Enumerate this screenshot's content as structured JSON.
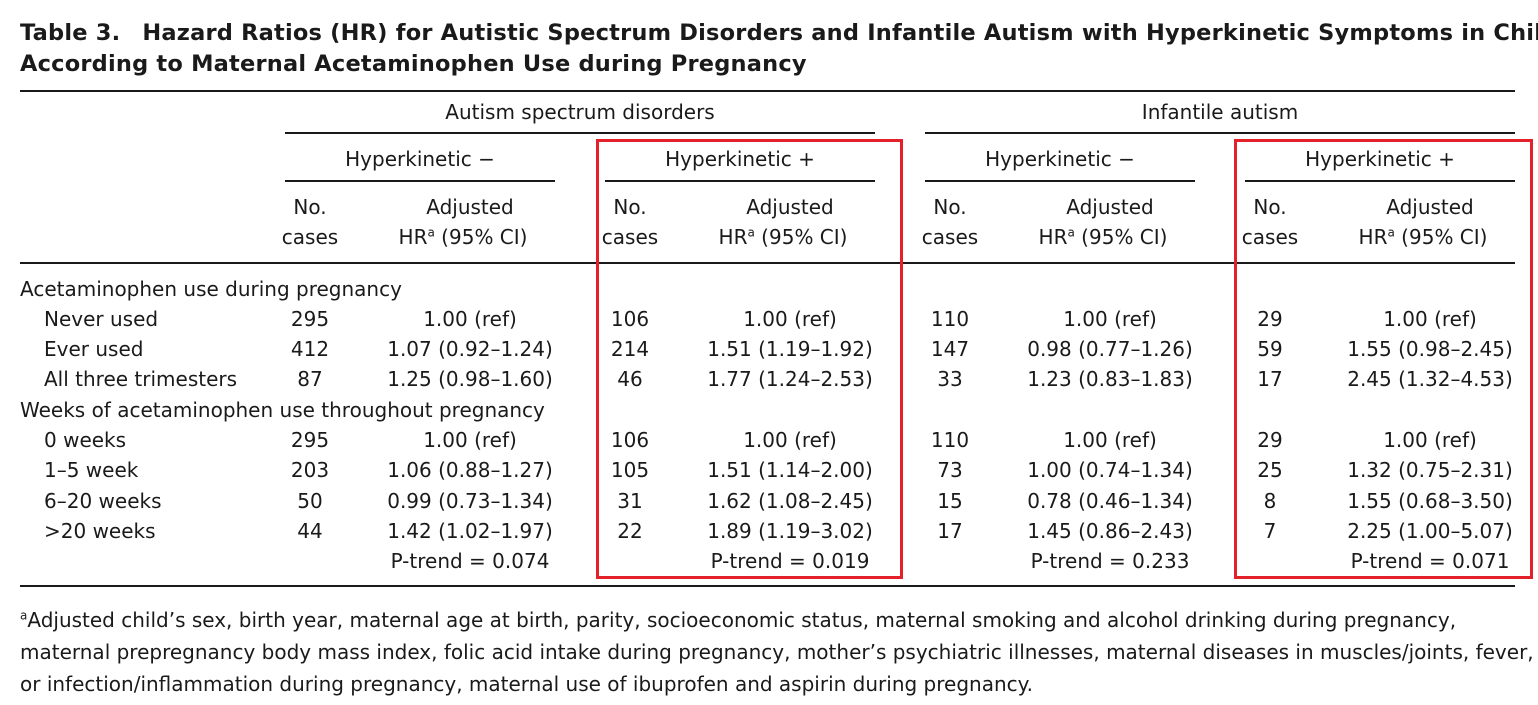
{
  "table": {
    "number": "Table 3.",
    "title_line1": "Hazard Ratios (HR) for Autistic Spectrum Disorders and Infantile Autism with Hyperkinetic Symptoms in Children",
    "title_line2": "According to Maternal Acetaminophen Use during Pregnancy",
    "groups": [
      "Autism spectrum disorders",
      "Infantile autism"
    ],
    "subgroups": [
      "Hyperkinetic −",
      "Hyperkinetic +",
      "Hyperkinetic −",
      "Hyperkinetic +"
    ],
    "col_headers": {
      "cases_line1": "No.",
      "cases_line2": "cases",
      "hr_line1": "Adjusted",
      "hr_prefix": "HR",
      "hr_sup": "a",
      "hr_suffix": " (95% CI)"
    },
    "sections": [
      {
        "label": "Acetaminophen use during pregnancy",
        "rows": [
          {
            "label": "Never used",
            "cells": [
              "295",
              "1.00 (ref)",
              "106",
              "1.00 (ref)",
              "110",
              "1.00 (ref)",
              "29",
              "1.00 (ref)"
            ]
          },
          {
            "label": "Ever used",
            "cells": [
              "412",
              "1.07 (0.92–1.24)",
              "214",
              "1.51 (1.19–1.92)",
              "147",
              "0.98 (0.77–1.26)",
              "59",
              "1.55 (0.98–2.45)"
            ]
          },
          {
            "label": "All three trimesters",
            "cells": [
              "87",
              "1.25 (0.98–1.60)",
              "46",
              "1.77 (1.24–2.53)",
              "33",
              "1.23 (0.83–1.83)",
              "17",
              "2.45 (1.32–4.53)"
            ]
          }
        ]
      },
      {
        "label": "Weeks of acetaminophen use throughout pregnancy",
        "rows": [
          {
            "label": "0 weeks",
            "cells": [
              "295",
              "1.00 (ref)",
              "106",
              "1.00 (ref)",
              "110",
              "1.00 (ref)",
              "29",
              "1.00 (ref)"
            ]
          },
          {
            "label": "1–5 week",
            "cells": [
              "203",
              "1.06 (0.88–1.27)",
              "105",
              "1.51 (1.14–2.00)",
              "73",
              "1.00 (0.74–1.34)",
              "25",
              "1.32 (0.75–2.31)"
            ]
          },
          {
            "label": "6–20 weeks",
            "cells": [
              "50",
              "0.99 (0.73–1.34)",
              "31",
              "1.62 (1.08–2.45)",
              "15",
              "0.78 (0.46–1.34)",
              "8",
              "1.55 (0.68–3.50)"
            ]
          },
          {
            "label": ">20 weeks",
            "cells": [
              "44",
              "1.42 (1.02–1.97)",
              "22",
              "1.89 (1.19–3.02)",
              "17",
              "1.45 (0.86–2.43)",
              "7",
              "2.25 (1.00–5.07)"
            ]
          }
        ]
      }
    ],
    "ptrends": [
      "P-trend = 0.074",
      "P-trend = 0.019",
      "P-trend = 0.233",
      "P-trend = 0.071"
    ]
  },
  "footnote": {
    "marker": "a",
    "line1": "Adjusted child’s sex, birth year, maternal age at birth, parity, socioeconomic status, maternal smoking and alcohol drinking during pregnancy,",
    "line2": "maternal prepregnancy body mass index, folic acid intake during pregnancy, mother’s psychiatric illnesses, maternal diseases in muscles/joints, fever,",
    "line3": "or infection/inflammation during pregnancy, maternal use of ibuprofen and aspirin during pregnancy."
  },
  "highlight_color": "#e3212b"
}
